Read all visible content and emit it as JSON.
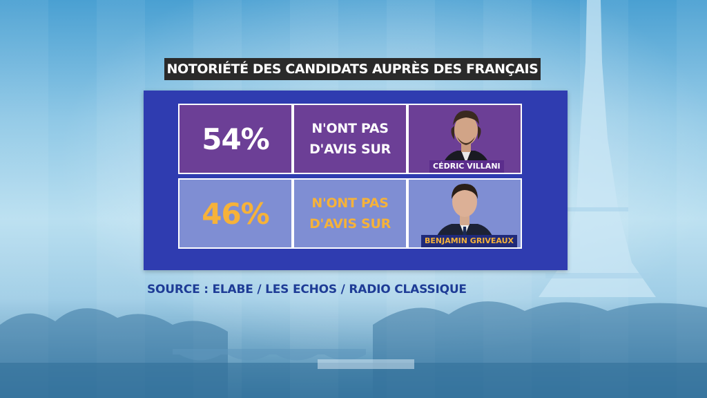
{
  "title": "NOTORIÉTÉ DES CANDIDATS AUPRÈS DES FRANÇAIS",
  "rows": [
    {
      "percent": "54%",
      "line1": "N'ONT PAS",
      "line2": "D'AVIS SUR",
      "name": "CÉDRIC VILLANI",
      "percent_color": "#ffffff",
      "row_color": "#6c3f96"
    },
    {
      "percent": "46%",
      "line1": "N'ONT PAS",
      "line2": "D'AVIS SUR",
      "name": "BENJAMIN GRIVEAUX",
      "percent_color": "#f6b239",
      "row_color": "#7f8ed3"
    }
  ],
  "source": "SOURCE : ELABE / LES ECHOS / RADIO CLASSIQUE",
  "colors": {
    "panel": "#2f3cb0",
    "accent": "#f6b239",
    "source_text": "#1e3c96"
  }
}
